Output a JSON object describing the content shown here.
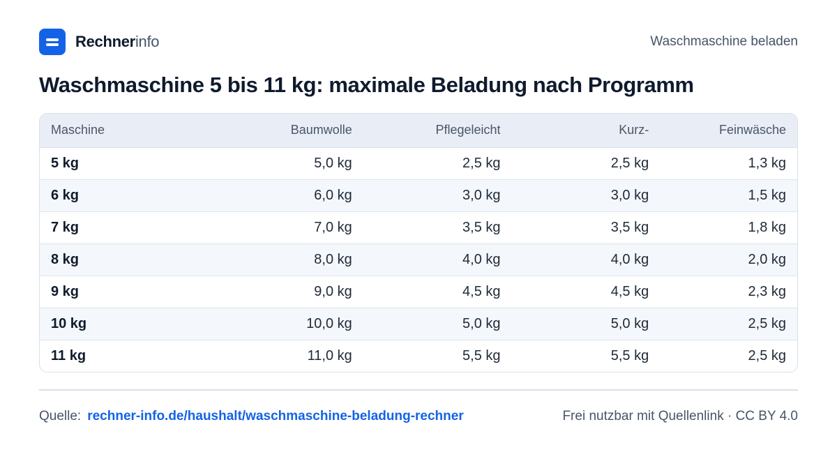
{
  "header": {
    "brand_bold": "Rechner",
    "brand_light": "info",
    "page_tag": "Waschmaschine beladen"
  },
  "title": "Waschmaschine 5 bis 11 kg: maximale Beladung nach Programm",
  "table": {
    "columns": [
      "Maschine",
      "Baumwolle",
      "Pflegeleicht",
      "Kurz-",
      "Feinwäsche"
    ],
    "rows": [
      [
        "5 kg",
        "5,0 kg",
        "2,5 kg",
        "2,5 kg",
        "1,3 kg"
      ],
      [
        "6 kg",
        "6,0 kg",
        "3,0 kg",
        "3,0 kg",
        "1,5 kg"
      ],
      [
        "7 kg",
        "7,0 kg",
        "3,5 kg",
        "3,5 kg",
        "1,8 kg"
      ],
      [
        "8 kg",
        "8,0 kg",
        "4,0 kg",
        "4,0 kg",
        "2,0 kg"
      ],
      [
        "9 kg",
        "9,0 kg",
        "4,5 kg",
        "4,5 kg",
        "2,3 kg"
      ],
      [
        "10 kg",
        "10,0 kg",
        "5,0 kg",
        "5,0 kg",
        "2,5 kg"
      ],
      [
        "11 kg",
        "11,0 kg",
        "5,5 kg",
        "5,5 kg",
        "2,5 kg"
      ]
    ]
  },
  "footer": {
    "source_label": "Quelle:",
    "source_link": "rechner-info.de/haushalt/waschmaschine-beladung-rechner",
    "license": "Frei nutzbar mit Quellenlink · CC BY 4.0"
  },
  "colors": {
    "accent": "#1463e6",
    "text": "#0f1b2d",
    "muted": "#475467",
    "header_bg": "#e9eef6",
    "stripe_bg": "#f4f7fb"
  },
  "icons": {
    "logo": "rechnerinfo-logo-icon"
  }
}
